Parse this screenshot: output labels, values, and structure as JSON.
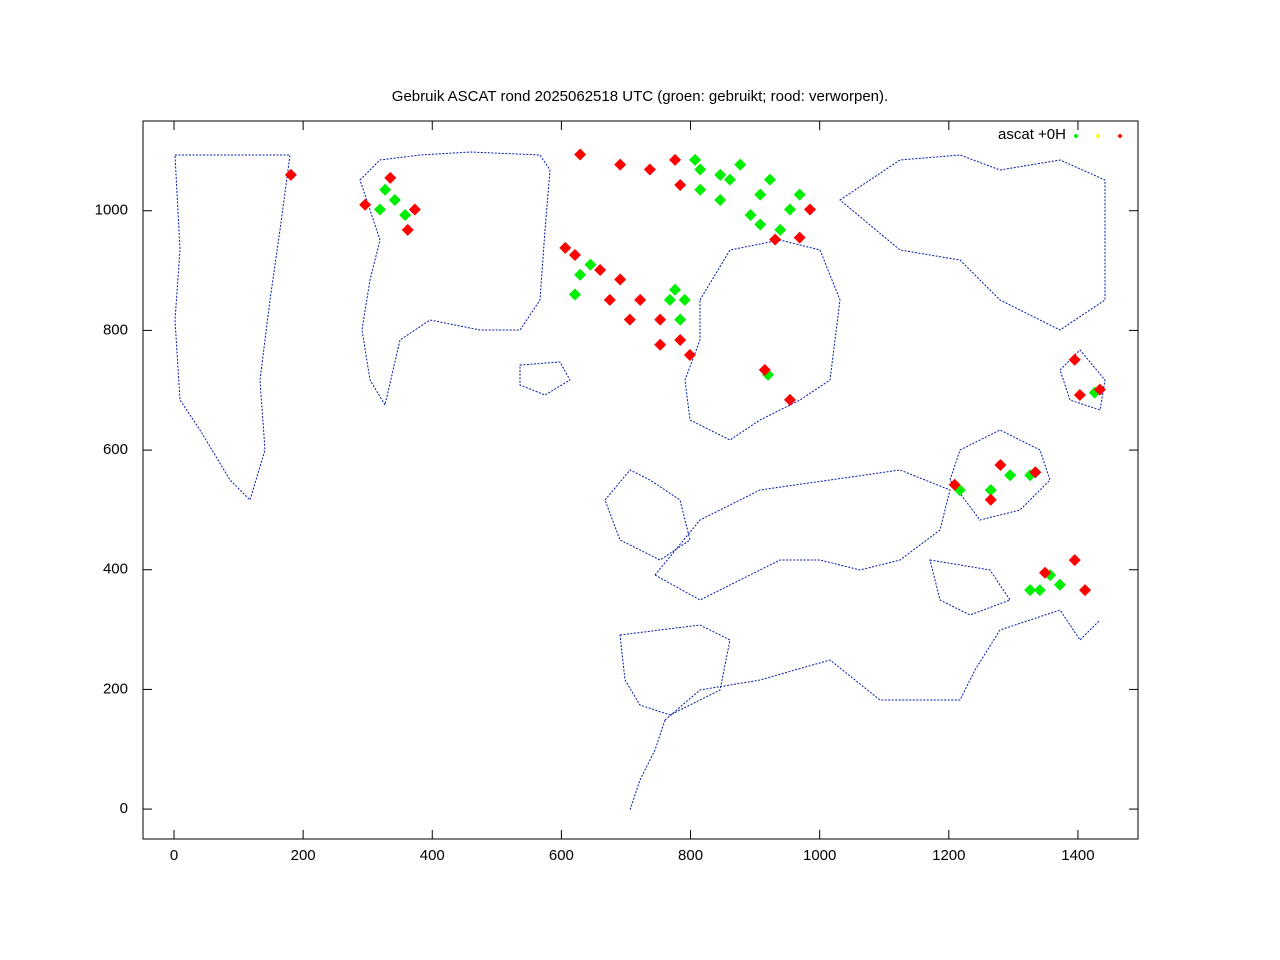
{
  "chart_data": {
    "type": "scatter",
    "title": "Gebruik ASCAT rond 2025062518 UTC (groen: gebruikt; rood: verworpen).",
    "legend_label": "ascat +0H",
    "xlim": [
      -48,
      1493
    ],
    "ylim": [
      -50,
      1150
    ],
    "xticks": [
      0,
      200,
      400,
      600,
      800,
      1000,
      1200,
      1400
    ],
    "yticks": [
      0,
      200,
      400,
      600,
      800,
      1000
    ],
    "series": [
      {
        "color": "#00ee00",
        "x": [
          815,
          861,
          908,
          954,
          846,
          893,
          939,
          815,
          807,
          877,
          923,
          969,
          908,
          846,
          629,
          645,
          621,
          768,
          784,
          791,
          776,
          327,
          342,
          358,
          319,
          920,
          1426,
          1295,
          1265,
          1326,
          1217,
          1341,
          1372,
          1326,
          1357
        ],
        "values": [
          1069,
          1052,
          1027,
          1002,
          1018,
          993,
          968,
          1035,
          1085,
          1077,
          1052,
          1027,
          977,
          1060,
          893,
          910,
          860,
          851,
          818,
          851,
          868,
          1035,
          1018,
          993,
          1002,
          726,
          696,
          558,
          533,
          558,
          533,
          366,
          375,
          366,
          391
        ]
      },
      {
        "color": "#ffff00",
        "x": [],
        "values": []
      },
      {
        "color": "#ff0000",
        "x": [
          629,
          691,
          737,
          776,
          784,
          985,
          969,
          931,
          621,
          660,
          691,
          722,
          753,
          784,
          799,
          675,
          706,
          753,
          606,
          296,
          335,
          373,
          362,
          181,
          915,
          954,
          1395,
          1434,
          1403,
          1265,
          1334,
          1209,
          1280,
          1395,
          1411,
          1349
        ],
        "values": [
          1094,
          1077,
          1069,
          1085,
          1043,
          1002,
          955,
          952,
          926,
          901,
          885,
          851,
          818,
          784,
          759,
          851,
          818,
          776,
          938,
          1010,
          1055,
          1002,
          968,
          1060,
          734,
          684,
          751,
          701,
          692,
          517,
          563,
          542,
          575,
          416,
          366,
          395
        ]
      }
    ]
  }
}
